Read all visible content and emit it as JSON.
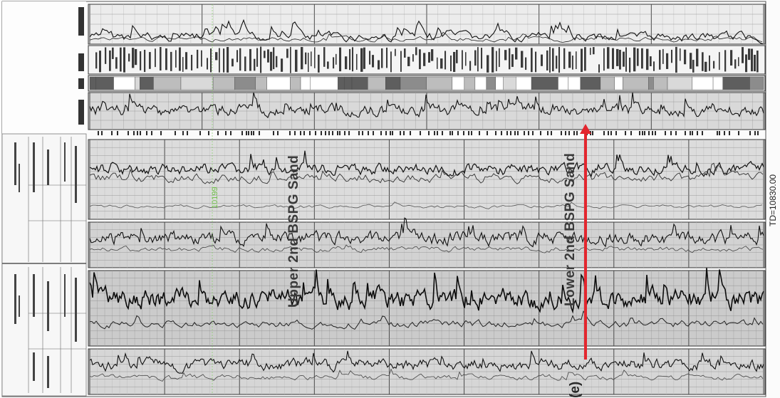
{
  "labels": {
    "upper_sand": "Upper 2nd BSPG Sand",
    "lower_sand": "Lower 2nd BSPG Sand",
    "depth_marker": "10199",
    "td": "TD=10830.00",
    "clipped_bottom": "(e)"
  },
  "colors": {
    "marker_line": "#e3262e",
    "depth_label": "#6fbf4a",
    "trace": "#1a1a1a",
    "grid_dark": "#5a5a5a",
    "grid_light": "#c8c8c8"
  }
}
